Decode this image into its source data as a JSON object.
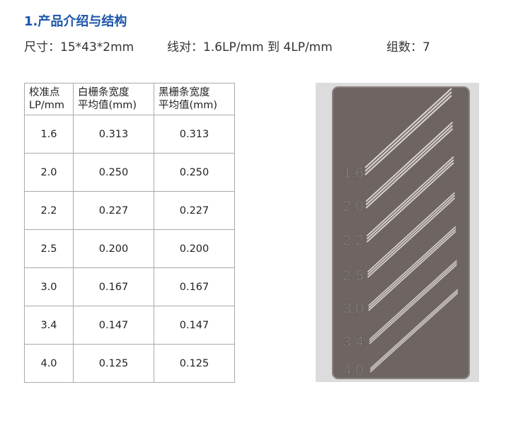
{
  "title": "1.产品介绍与结构",
  "specs": {
    "size": "尺寸：15*43*2mm",
    "line_pairs": "线对：1.6LP/mm 到 4LP/mm",
    "groups": "组数：7"
  },
  "table": {
    "headers": [
      [
        "校准点",
        "LP/mm"
      ],
      [
        "白栅条宽度",
        "平均值(mm)"
      ],
      [
        "黑栅条宽度",
        "平均值(mm)"
      ]
    ],
    "rows": [
      [
        "1.6",
        "0.313",
        "0.313"
      ],
      [
        "2.0",
        "0.250",
        "0.250"
      ],
      [
        "2.2",
        "0.227",
        "0.227"
      ],
      [
        "2.5",
        "0.200",
        "0.200"
      ],
      [
        "3.0",
        "0.167",
        "0.167"
      ],
      [
        "3.4",
        "0.147",
        "0.147"
      ],
      [
        "4.0",
        "0.125",
        "0.125"
      ]
    ]
  },
  "photo": {
    "labels": [
      "1.6",
      "2.0",
      "2.2",
      "2.5",
      "3.0",
      "3.4",
      "4.0"
    ],
    "plate_color": "#6e6462",
    "background_color": "#d9d9d9"
  }
}
